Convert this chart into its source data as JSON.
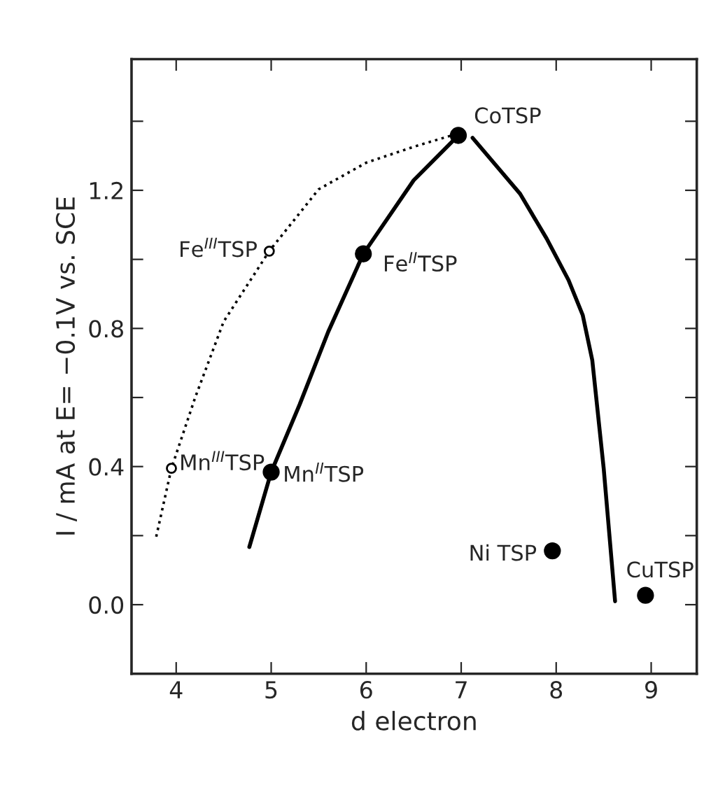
{
  "chart_data": {
    "type": "scatter",
    "xlabel": "d electron",
    "ylabel": "I / mA at E= −0.1V vs. SCE",
    "xlim": [
      3.53,
      9.48
    ],
    "ylim": [
      -0.2,
      1.58
    ],
    "xticks": [
      4,
      5,
      6,
      7,
      8,
      9
    ],
    "yticks": [
      {
        "value": -0.2,
        "label": null
      },
      {
        "value": 0.0,
        "label": "0.0"
      },
      {
        "value": 0.2,
        "label": null
      },
      0.4,
      {
        "value": 0.6,
        "label": null
      },
      0.8,
      {
        "value": 1.0,
        "label": null
      },
      1.2,
      {
        "value": 1.4,
        "label": null
      }
    ],
    "grid": false,
    "legend": false,
    "series": [
      {
        "type": "line",
        "line_style": "solid",
        "marker": "none",
        "color": "#000000",
        "x": [
          4.77,
          5.0,
          5.3,
          5.6,
          5.97,
          6.5,
          6.97
        ],
        "values": [
          0.167,
          0.384,
          0.58,
          0.79,
          1.016,
          1.229,
          1.359
        ]
      },
      {
        "type": "line",
        "line_style": "solid",
        "marker": "none",
        "color": "#000000",
        "x": [
          7.12,
          7.62,
          7.9,
          8.13,
          8.28,
          8.38,
          8.5,
          8.62
        ],
        "values": [
          1.352,
          1.19,
          1.06,
          0.94,
          0.838,
          0.708,
          0.395,
          0.01
        ]
      },
      {
        "type": "line",
        "line_style": "dotted",
        "marker": "none",
        "color": "#000000",
        "x": [
          3.79,
          3.95,
          4.2,
          4.5,
          4.98,
          5.5,
          6.0,
          6.5,
          6.9
        ],
        "values": [
          0.197,
          0.395,
          0.6,
          0.82,
          1.024,
          1.203,
          1.28,
          1.326,
          1.359
        ]
      },
      {
        "marker": "circle",
        "color": "#000000",
        "x": [
          5.0,
          5.97,
          6.97,
          7.96,
          8.94
        ],
        "values": [
          0.384,
          1.016,
          1.359,
          0.156,
          0.027
        ]
      },
      {
        "marker": "circle",
        "color": "#ffffff",
        "x": [
          3.95,
          4.98
        ],
        "values": [
          0.395,
          1.024
        ]
      }
    ],
    "annotations": [
      {
        "text": "CoTSP",
        "x": 6.97,
        "y": 1.359
      },
      {
        "text": "Fe$^{III}$TSP",
        "x": 4.98,
        "y": 1.024
      },
      {
        "text": "Fe$^{II}$TSP",
        "x": 5.97,
        "y": 1.016
      },
      {
        "text": "Mn$^{III}$TSP",
        "x": 3.95,
        "y": 0.395
      },
      {
        "text": "Mn$^{II}$TSP",
        "x": 5.0,
        "y": 0.384
      },
      {
        "text": "Ni TSP",
        "x": 7.96,
        "y": 0.156
      },
      {
        "text": "CuTSP",
        "x": 8.94,
        "y": 0.027
      }
    ]
  }
}
